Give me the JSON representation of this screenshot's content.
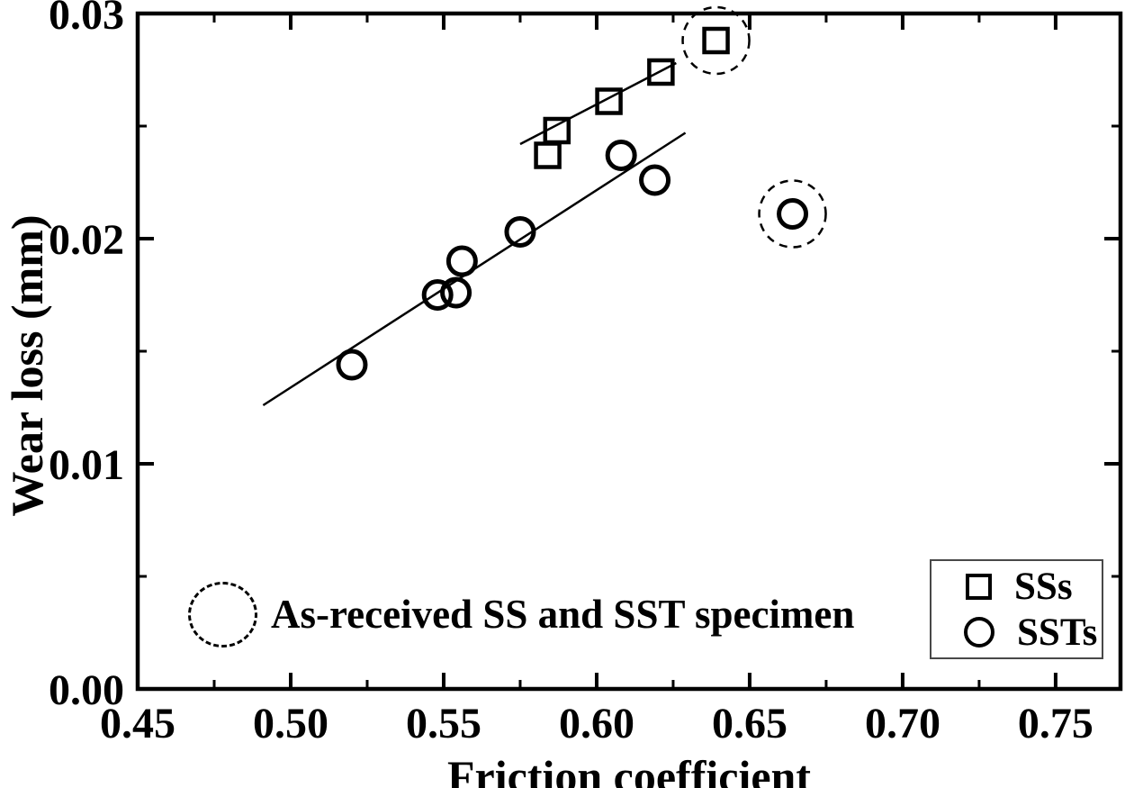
{
  "chart_data": {
    "type": "scatter",
    "title": "",
    "xlabel": "Friction coefficient",
    "ylabel": "Wear loss (mm)",
    "xlim": [
      0.45,
      0.7712
    ],
    "ylim": [
      0.0,
      0.03
    ],
    "grid": false,
    "background_color": "#ffffff",
    "foreground_color": "#000000",
    "x_ticks_major": [
      0.45,
      0.5,
      0.55,
      0.6,
      0.65,
      0.7,
      0.75
    ],
    "x_tick_labels": [
      "0.45",
      "0.50",
      "0.55",
      "0.60",
      "0.65",
      "0.70",
      "0.75"
    ],
    "x_ticks_minor": [
      0.475,
      0.525,
      0.575,
      0.625,
      0.675,
      0.725
    ],
    "y_ticks_major": [
      0.0,
      0.01,
      0.02,
      0.03
    ],
    "y_tick_labels": [
      "0.00",
      "0.01",
      "0.02",
      "0.03"
    ],
    "y_ticks_minor": [
      0.005,
      0.015,
      0.025
    ],
    "series": [
      {
        "name": "SSs",
        "marker": "square",
        "points": [
          [
            0.584,
            0.0237
          ],
          [
            0.587,
            0.0248
          ],
          [
            0.604,
            0.0261
          ],
          [
            0.621,
            0.0274
          ],
          [
            0.639,
            0.0288
          ]
        ]
      },
      {
        "name": "SSTs",
        "marker": "circle",
        "points": [
          [
            0.52,
            0.0144
          ],
          [
            0.548,
            0.0175
          ],
          [
            0.554,
            0.0176
          ],
          [
            0.556,
            0.019
          ],
          [
            0.575,
            0.0203
          ],
          [
            0.608,
            0.0237
          ],
          [
            0.619,
            0.0226
          ],
          [
            0.664,
            0.0211
          ]
        ]
      }
    ],
    "fit_lines": [
      {
        "series": "SSs",
        "from": [
          0.575,
          0.0242
        ],
        "to": [
          0.626,
          0.0278
        ]
      },
      {
        "series": "SSTs",
        "from": [
          0.491,
          0.0126
        ],
        "to": [
          0.629,
          0.0247
        ]
      }
    ],
    "annotation": {
      "text": "As-received SS and SST specimen",
      "circled_points": [
        {
          "series": "SSs",
          "x": 0.639,
          "y": 0.0288
        },
        {
          "series": "SSTs",
          "x": 0.664,
          "y": 0.0211
        }
      ]
    },
    "legend": {
      "position": "bottom-right",
      "entries": [
        {
          "marker": "square",
          "label": "SSs"
        },
        {
          "marker": "circle",
          "label": "SSTs"
        }
      ]
    }
  }
}
